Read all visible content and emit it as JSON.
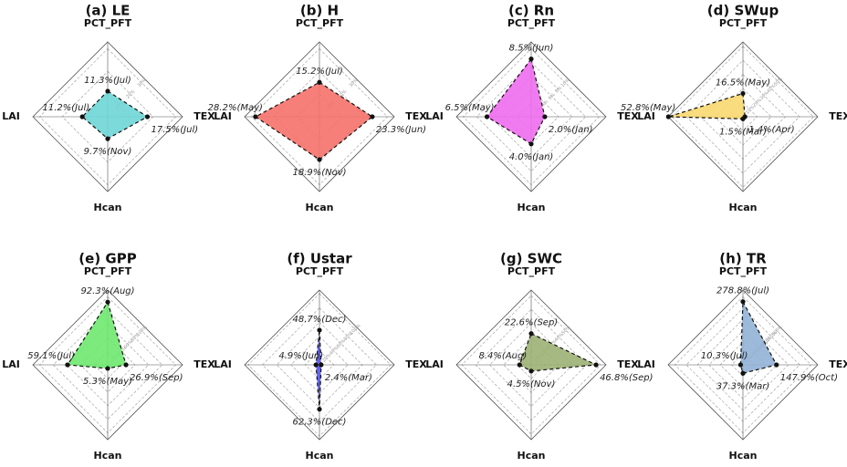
{
  "chart_data": [
    {
      "type": "radar",
      "title": "(a) LE",
      "categories": [
        "PCT_PFT",
        "TEX",
        "Hcan",
        "LAI"
      ],
      "values": [
        11.3,
        17.5,
        9.7,
        11.2
      ],
      "value_labels": [
        "11.3%(Jul)",
        "17.5%(Jul)",
        "9.7%(Nov)",
        "11.2%(Jul)"
      ],
      "color": "#6fd6d6",
      "rlim": [
        0,
        33
      ],
      "rticks": [
        {
          "value": 10,
          "label": "10%"
        },
        {
          "value": 20,
          "label": "20%"
        },
        {
          "value": 30,
          "label": "30%"
        }
      ]
    },
    {
      "type": "radar",
      "title": "(b) H",
      "categories": [
        "PCT_PFT",
        "TEX",
        "Hcan",
        "LAI"
      ],
      "values": [
        15.2,
        23.3,
        18.9,
        28.2
      ],
      "value_labels": [
        "15.2%(Jul)",
        "23.3%(Jun)",
        "18.9%(Nov)",
        "28.2%(May)"
      ],
      "color": "#f6716a",
      "rlim": [
        0,
        33
      ],
      "rticks": [
        {
          "value": 10,
          "label": "10%"
        },
        {
          "value": 20,
          "label": "20%"
        },
        {
          "value": 30,
          "label": "30%"
        }
      ]
    },
    {
      "type": "radar",
      "title": "(c) Rn",
      "categories": [
        "PCT_PFT",
        "TEX",
        "Hcan",
        "LAI"
      ],
      "values": [
        8.5,
        2.0,
        4.0,
        6.5
      ],
      "value_labels": [
        "8.5%(Jun)",
        "2.0%(Jan)",
        "4.0%(Jan)",
        "6.5%(May)"
      ],
      "color": "#ee6cee",
      "rlim": [
        0,
        11
      ],
      "rticks": [
        {
          "value": 2,
          "label": "2%"
        },
        {
          "value": 4,
          "label": "4%"
        },
        {
          "value": 6,
          "label": "6%"
        },
        {
          "value": 8,
          "label": "8%"
        },
        {
          "value": 10,
          "label": "10%"
        }
      ]
    },
    {
      "type": "radar",
      "title": "(d) SWup",
      "categories": [
        "PCT_PFT",
        "TEX",
        "Hcan",
        "LAI"
      ],
      "values": [
        16.5,
        1.4,
        1.5,
        52.8
      ],
      "value_labels": [
        "16.5%(May)",
        "1.4%(Apr)",
        "1.5%(Mar)",
        "52.8%(May)"
      ],
      "color": "#f8d870",
      "rlim": [
        0,
        53
      ],
      "rticks": [
        {
          "value": 10,
          "label": "10%"
        },
        {
          "value": 20,
          "label": "20%"
        },
        {
          "value": 30,
          "label": "30%"
        },
        {
          "value": 40,
          "label": "40%"
        },
        {
          "value": 50,
          "label": "50%"
        }
      ]
    },
    {
      "type": "radar",
      "title": "(e) GPP",
      "categories": [
        "PCT_PFT",
        "TEX",
        "Hcan",
        "LAI"
      ],
      "values": [
        92.3,
        26.9,
        5.3,
        59.1
      ],
      "value_labels": [
        "92.3%(Aug)",
        "26.9%(Sep)",
        "5.3%(May)",
        "59.1%(Jul)"
      ],
      "color": "#6ee86e",
      "rlim": [
        0,
        110
      ],
      "rticks": [
        {
          "value": 20,
          "label": "20%"
        },
        {
          "value": 40,
          "label": "40%"
        },
        {
          "value": 60,
          "label": "60%"
        },
        {
          "value": 80,
          "label": "80%"
        },
        {
          "value": 100,
          "label": "100%"
        }
      ]
    },
    {
      "type": "radar",
      "title": "(f) Ustar",
      "categories": [
        "PCT_PFT",
        "TEX",
        "Hcan",
        "LAI"
      ],
      "values": [
        48.7,
        2.4,
        62.3,
        4.9
      ],
      "value_labels": [
        "48.7%(Dec)",
        "2.4%(Mar)",
        "62.3%(Dec)",
        "4.9%(Jun)"
      ],
      "color": "#5a5aee",
      "rlim": [
        0,
        105
      ],
      "rticks": [
        {
          "value": 20,
          "label": "20%"
        },
        {
          "value": 40,
          "label": "40%"
        },
        {
          "value": 60,
          "label": "60%"
        },
        {
          "value": 80,
          "label": "80%"
        },
        {
          "value": 100,
          "label": "100%"
        }
      ]
    },
    {
      "type": "radar",
      "title": "(g) SWC",
      "categories": [
        "PCT_PFT",
        "TEX",
        "Hcan",
        "LAI"
      ],
      "values": [
        22.6,
        46.8,
        4.5,
        8.4
      ],
      "value_labels": [
        "22.6%(Sep)",
        "46.8%(Sep)",
        "4.5%(Nov)",
        "8.4%(Aug)"
      ],
      "color": "#9db174",
      "rlim": [
        0,
        54
      ],
      "rticks": [
        {
          "value": 10,
          "label": "10%"
        },
        {
          "value": 20,
          "label": "20%"
        },
        {
          "value": 30,
          "label": "30%"
        },
        {
          "value": 40,
          "label": "40%"
        },
        {
          "value": 50,
          "label": "50%"
        }
      ]
    },
    {
      "type": "radar",
      "title": "(h) TR",
      "categories": [
        "PCT_PFT",
        "TEX",
        "Hcan",
        "LAI"
      ],
      "values": [
        278.8,
        147.9,
        37.3,
        10.3
      ],
      "value_labels": [
        "278.8%(Jul)",
        "147.9%(Oct)",
        "37.3%(Mar)",
        "10.3%(Jul)"
      ],
      "color": "#93b3d6",
      "rlim": [
        0,
        330
      ],
      "rticks": [
        {
          "value": 50,
          "label": "50%"
        },
        {
          "value": 100,
          "label": "100%"
        },
        {
          "value": 150,
          "label": "150%"
        },
        {
          "value": 200,
          "label": "200%"
        },
        {
          "value": 250,
          "label": "250%"
        },
        {
          "value": 300,
          "label": "300%"
        }
      ]
    }
  ]
}
